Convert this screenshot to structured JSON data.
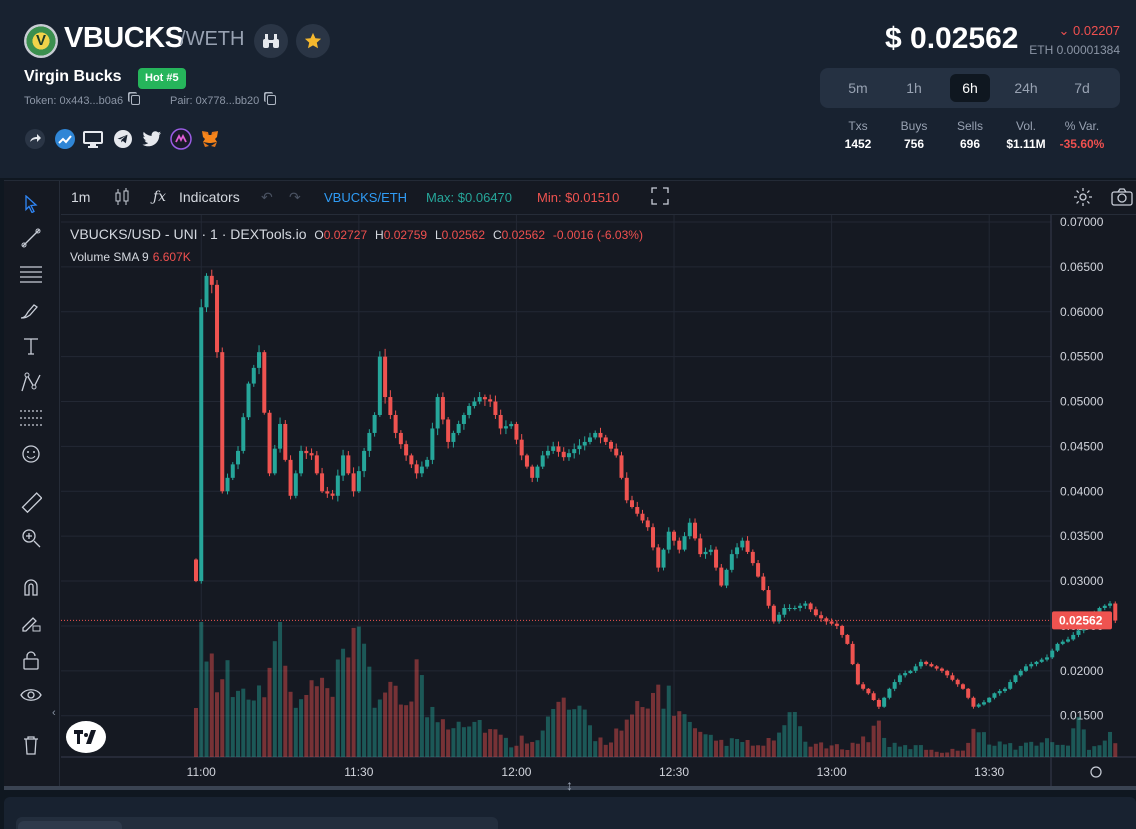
{
  "header": {
    "logo_letter": "V",
    "symbol": "VBUCKS",
    "pair_sep": "/",
    "quote": "WETH",
    "name": "Virgin Bucks",
    "hot_badge": "Hot #5",
    "token_addr": "Token: 0x443...b0a6",
    "pair_addr": "Pair: 0x778...bb20",
    "price": "$ 0.02562",
    "change": "0.02207",
    "eth_price": "ETH 0.00001384",
    "timeframes": [
      "5m",
      "1h",
      "6h",
      "24h",
      "7d"
    ],
    "active_timeframe": "6h",
    "stats": {
      "labels": [
        "Txs",
        "Buys",
        "Sells",
        "Vol.",
        "% Var."
      ],
      "values": [
        "1452",
        "756",
        "696",
        "$1.11M",
        "-35.60%"
      ]
    }
  },
  "toolbar": {
    "interval": "1m",
    "indicators": "Indicators",
    "pair": "VBUCKS/ETH",
    "max": "Max: $0.06470",
    "min": "Min: $0.01510"
  },
  "legend": {
    "title": "VBUCKS/USD - UNI · 1 · DEXTools.io",
    "o_label": "O",
    "o": "0.02727",
    "h_label": "H",
    "h": "0.02759",
    "l_label": "L",
    "l": "0.02562",
    "c_label": "C",
    "c": "0.02562",
    "diff": "-0.0016 (-6.03%)",
    "volume_label": "Volume SMA 9",
    "volume_value": "6.607K"
  },
  "chart_data": {
    "type": "candlestick",
    "y_ticks": [
      "0.07000",
      "0.06500",
      "0.06000",
      "0.05500",
      "0.05000",
      "0.04500",
      "0.04000",
      "0.03500",
      "0.03000",
      "0.02500",
      "0.02000",
      "0.01500"
    ],
    "ylim": [
      0.0104,
      0.07
    ],
    "x_ticks": [
      "11:00",
      "11:30",
      "12:00",
      "12:30",
      "13:00",
      "13:30"
    ],
    "current_price_label": "0.02562",
    "current_price": 0.02562,
    "colors": {
      "up": "#26a69a",
      "down": "#ef5350",
      "grid": "#232834",
      "text": "#d1d4dc"
    },
    "price_anchors": [
      [
        0,
        0.03
      ],
      [
        1,
        0.0605
      ],
      [
        2,
        0.064
      ],
      [
        3,
        0.063
      ],
      [
        4,
        0.0555
      ],
      [
        5,
        0.04
      ],
      [
        8,
        0.0445
      ],
      [
        10,
        0.052
      ],
      [
        12,
        0.0555
      ],
      [
        14,
        0.042
      ],
      [
        16,
        0.0475
      ],
      [
        18,
        0.0395
      ],
      [
        20,
        0.0445
      ],
      [
        22,
        0.044
      ],
      [
        24,
        0.04
      ],
      [
        26,
        0.0395
      ],
      [
        28,
        0.044
      ],
      [
        30,
        0.04
      ],
      [
        32,
        0.0445
      ],
      [
        34,
        0.0485
      ],
      [
        35,
        0.055
      ],
      [
        36,
        0.0505
      ],
      [
        38,
        0.0465
      ],
      [
        40,
        0.044
      ],
      [
        42,
        0.042
      ],
      [
        44,
        0.0435
      ],
      [
        46,
        0.0505
      ],
      [
        48,
        0.0455
      ],
      [
        50,
        0.0475
      ],
      [
        52,
        0.0495
      ],
      [
        54,
        0.0505
      ],
      [
        56,
        0.05
      ],
      [
        58,
        0.047
      ],
      [
        60,
        0.0475
      ],
      [
        62,
        0.044
      ],
      [
        64,
        0.0415
      ],
      [
        66,
        0.044
      ],
      [
        68,
        0.045
      ],
      [
        70,
        0.0438
      ],
      [
        72,
        0.0447
      ],
      [
        74,
        0.0455
      ],
      [
        76,
        0.0465
      ],
      [
        78,
        0.0455
      ],
      [
        80,
        0.044
      ],
      [
        82,
        0.039
      ],
      [
        84,
        0.0375
      ],
      [
        86,
        0.036
      ],
      [
        88,
        0.0315
      ],
      [
        90,
        0.0355
      ],
      [
        92,
        0.0335
      ],
      [
        94,
        0.0365
      ],
      [
        96,
        0.033
      ],
      [
        98,
        0.0335
      ],
      [
        100,
        0.0295
      ],
      [
        102,
        0.033
      ],
      [
        104,
        0.0345
      ],
      [
        106,
        0.032
      ],
      [
        108,
        0.029
      ],
      [
        110,
        0.0255
      ],
      [
        112,
        0.027
      ],
      [
        114,
        0.027
      ],
      [
        116,
        0.0275
      ],
      [
        118,
        0.0262
      ],
      [
        120,
        0.0255
      ],
      [
        122,
        0.025
      ],
      [
        124,
        0.023
      ],
      [
        126,
        0.0185
      ],
      [
        128,
        0.0175
      ],
      [
        130,
        0.016
      ],
      [
        132,
        0.018
      ],
      [
        134,
        0.0195
      ],
      [
        136,
        0.02
      ],
      [
        138,
        0.021
      ],
      [
        140,
        0.0205
      ],
      [
        142,
        0.02
      ],
      [
        144,
        0.019
      ],
      [
        146,
        0.018
      ],
      [
        148,
        0.016
      ],
      [
        150,
        0.0165
      ],
      [
        152,
        0.0175
      ],
      [
        154,
        0.018
      ],
      [
        156,
        0.0195
      ],
      [
        158,
        0.0205
      ],
      [
        160,
        0.021
      ],
      [
        162,
        0.0215
      ],
      [
        164,
        0.023
      ],
      [
        166,
        0.0235
      ],
      [
        168,
        0.0245
      ],
      [
        170,
        0.026
      ],
      [
        172,
        0.027
      ],
      [
        174,
        0.0275
      ],
      [
        175,
        0.0256
      ]
    ],
    "volume_anchors": [
      [
        0,
        70
      ],
      [
        1,
        128
      ],
      [
        2,
        130
      ],
      [
        4,
        70
      ],
      [
        6,
        90
      ],
      [
        8,
        60
      ],
      [
        10,
        80
      ],
      [
        12,
        60
      ],
      [
        14,
        110
      ],
      [
        16,
        130
      ],
      [
        18,
        60
      ],
      [
        20,
        50
      ],
      [
        22,
        70
      ],
      [
        26,
        60
      ],
      [
        28,
        90
      ],
      [
        30,
        100
      ],
      [
        32,
        130
      ],
      [
        34,
        60
      ],
      [
        36,
        50
      ],
      [
        38,
        70
      ],
      [
        40,
        55
      ],
      [
        42,
        95
      ],
      [
        44,
        45
      ],
      [
        46,
        40
      ],
      [
        48,
        35
      ],
      [
        50,
        40
      ],
      [
        54,
        35
      ],
      [
        58,
        20
      ],
      [
        60,
        12
      ],
      [
        62,
        18
      ],
      [
        64,
        20
      ],
      [
        66,
        25
      ],
      [
        68,
        45
      ],
      [
        70,
        55
      ],
      [
        72,
        40
      ],
      [
        74,
        40
      ],
      [
        76,
        20
      ],
      [
        78,
        15
      ],
      [
        80,
        25
      ],
      [
        82,
        30
      ],
      [
        84,
        45
      ],
      [
        86,
        48
      ],
      [
        88,
        70
      ],
      [
        90,
        60
      ],
      [
        92,
        45
      ],
      [
        94,
        30
      ],
      [
        96,
        20
      ],
      [
        100,
        15
      ],
      [
        104,
        15
      ],
      [
        108,
        10
      ],
      [
        110,
        20
      ],
      [
        112,
        25
      ],
      [
        114,
        45
      ],
      [
        116,
        15
      ],
      [
        120,
        10
      ],
      [
        124,
        10
      ],
      [
        128,
        20
      ],
      [
        130,
        35
      ],
      [
        132,
        12
      ],
      [
        134,
        10
      ],
      [
        138,
        10
      ],
      [
        142,
        5
      ],
      [
        146,
        8
      ],
      [
        148,
        30
      ],
      [
        150,
        20
      ],
      [
        152,
        15
      ],
      [
        156,
        10
      ],
      [
        160,
        15
      ],
      [
        164,
        15
      ],
      [
        166,
        10
      ],
      [
        168,
        40
      ],
      [
        170,
        10
      ],
      [
        172,
        15
      ],
      [
        174,
        25
      ],
      [
        175,
        15
      ]
    ],
    "time_ticks_index": [
      1,
      31,
      61,
      91,
      121,
      151
    ],
    "count": 176
  }
}
